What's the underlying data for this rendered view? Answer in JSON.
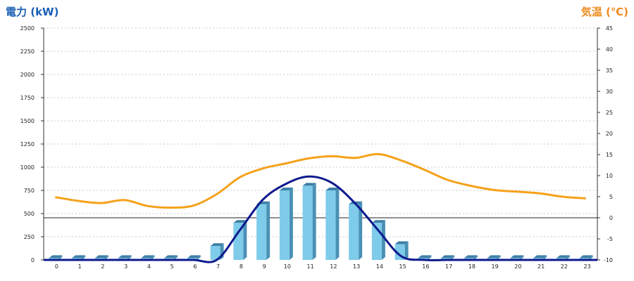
{
  "chart_data": {
    "type": "bar",
    "y_left_title": "電力 (kW)",
    "y_right_title": "気温 (℃)",
    "x": [
      "0",
      "1",
      "2",
      "3",
      "4",
      "5",
      "6",
      "7",
      "8",
      "9",
      "10",
      "11",
      "12",
      "13",
      "14",
      "15",
      "16",
      "17",
      "18",
      "19",
      "20",
      "21",
      "22",
      "23"
    ],
    "y_left_ticks": [
      "0",
      "250",
      "500",
      "750",
      "1000",
      "1250",
      "1500",
      "1750",
      "2000",
      "2250",
      "2500"
    ],
    "y_right_ticks": [
      "-10",
      "-5",
      "0",
      "5",
      "10",
      "15",
      "20",
      "25",
      "30",
      "35",
      "40",
      "45"
    ],
    "y_left_range": [
      0,
      2500
    ],
    "y_right_range": [
      -10,
      45
    ],
    "grid": true,
    "series": [
      {
        "kind": "bar",
        "axis": "left",
        "color": "#7ecbea",
        "values": [
          20,
          20,
          20,
          20,
          20,
          20,
          20,
          150,
          400,
          600,
          750,
          800,
          750,
          600,
          400,
          170,
          20,
          20,
          20,
          20,
          20,
          20,
          20,
          20
        ]
      },
      {
        "kind": "line",
        "axis": "left",
        "color": "#0d1a8c",
        "values": [
          0,
          0,
          0,
          0,
          0,
          0,
          0,
          0,
          320,
          650,
          820,
          900,
          830,
          610,
          320,
          40,
          0,
          0,
          0,
          0,
          0,
          0,
          0,
          0
        ]
      },
      {
        "kind": "line",
        "axis": "right",
        "color": "#f5a11a",
        "values": [
          4.9,
          4.0,
          3.5,
          4.2,
          2.8,
          2.4,
          2.9,
          5.6,
          9.6,
          11.7,
          12.9,
          14.1,
          14.6,
          14.2,
          15.1,
          13.6,
          11.4,
          9.0,
          7.6,
          6.6,
          6.2,
          5.8,
          5.0,
          4.6
        ]
      }
    ]
  }
}
